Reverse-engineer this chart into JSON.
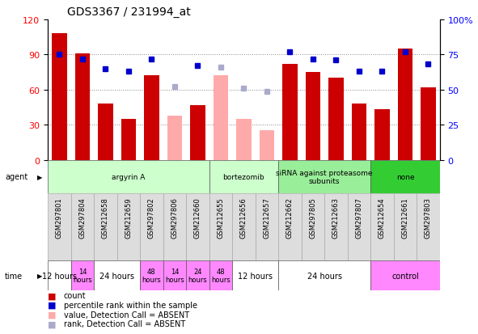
{
  "title": "GDS3367 / 231994_at",
  "samples": [
    "GSM297801",
    "GSM297804",
    "GSM212658",
    "GSM212659",
    "GSM297802",
    "GSM297806",
    "GSM212660",
    "GSM212655",
    "GSM212656",
    "GSM212657",
    "GSM212662",
    "GSM297805",
    "GSM212663",
    "GSM297807",
    "GSM212654",
    "GSM212661",
    "GSM297803"
  ],
  "bar_values": [
    108,
    91,
    48,
    35,
    72,
    38,
    47,
    72,
    35,
    25,
    82,
    75,
    70,
    48,
    43,
    95,
    62
  ],
  "bar_absent": [
    false,
    false,
    false,
    false,
    false,
    true,
    false,
    true,
    true,
    true,
    false,
    false,
    false,
    false,
    false,
    false,
    false
  ],
  "rank_values": [
    75,
    72,
    65,
    63,
    72,
    52,
    67,
    66,
    51,
    49,
    77,
    72,
    71,
    63,
    63,
    77,
    68
  ],
  "rank_absent": [
    false,
    false,
    false,
    false,
    false,
    true,
    false,
    true,
    true,
    true,
    false,
    false,
    false,
    false,
    false,
    false,
    false
  ],
  "ylim_left": [
    0,
    120
  ],
  "ylim_right": [
    0,
    100
  ],
  "yticks_left": [
    0,
    30,
    60,
    90,
    120
  ],
  "yticks_right": [
    0,
    25,
    50,
    75,
    100
  ],
  "bar_color_present": "#cc0000",
  "bar_color_absent": "#ffaaaa",
  "rank_color_present": "#0000cc",
  "rank_color_absent": "#aaaacc",
  "agents": [
    {
      "label": "argyrin A",
      "start": 0,
      "end": 7,
      "color": "#ccffcc"
    },
    {
      "label": "bortezomib",
      "start": 7,
      "end": 10,
      "color": "#ccffcc"
    },
    {
      "label": "siRNA against proteasome\nsubunits",
      "start": 10,
      "end": 14,
      "color": "#99ee99"
    },
    {
      "label": "none",
      "start": 14,
      "end": 17,
      "color": "#33cc33"
    }
  ],
  "times": [
    {
      "label": "12 hours",
      "start": 0,
      "end": 1,
      "color": "#ffffff",
      "fontsize": 7
    },
    {
      "label": "14\nhours",
      "start": 1,
      "end": 2,
      "color": "#ff88ff",
      "fontsize": 6
    },
    {
      "label": "24 hours",
      "start": 2,
      "end": 4,
      "color": "#ffffff",
      "fontsize": 7
    },
    {
      "label": "48\nhours",
      "start": 4,
      "end": 5,
      "color": "#ff88ff",
      "fontsize": 6
    },
    {
      "label": "14\nhours",
      "start": 5,
      "end": 6,
      "color": "#ff88ff",
      "fontsize": 6
    },
    {
      "label": "24\nhours",
      "start": 6,
      "end": 7,
      "color": "#ff88ff",
      "fontsize": 6
    },
    {
      "label": "48\nhours",
      "start": 7,
      "end": 8,
      "color": "#ff88ff",
      "fontsize": 6
    },
    {
      "label": "12 hours",
      "start": 8,
      "end": 10,
      "color": "#ffffff",
      "fontsize": 7
    },
    {
      "label": "24 hours",
      "start": 10,
      "end": 14,
      "color": "#ffffff",
      "fontsize": 7
    },
    {
      "label": "control",
      "start": 14,
      "end": 17,
      "color": "#ff88ff",
      "fontsize": 7
    }
  ],
  "legend": [
    {
      "label": "count",
      "color": "#cc0000"
    },
    {
      "label": "percentile rank within the sample",
      "color": "#0000cc"
    },
    {
      "label": "value, Detection Call = ABSENT",
      "color": "#ffaaaa"
    },
    {
      "label": "rank, Detection Call = ABSENT",
      "color": "#aaaacc"
    }
  ],
  "fig_width": 5.91,
  "fig_height": 4.14,
  "dpi": 100
}
